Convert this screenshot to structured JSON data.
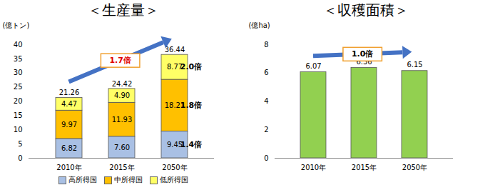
{
  "chart_data": [
    {
      "type": "bar",
      "title": "＜生産量＞",
      "y_label": "(億トン)",
      "categories": [
        "2010年",
        "2015年",
        "2050年"
      ],
      "series": [
        {
          "name": "高所得国",
          "color": "#a9c0e4",
          "values": [
            6.82,
            7.6,
            9.45
          ],
          "value_labels": [
            "6.82",
            "7.60",
            "9.45"
          ]
        },
        {
          "name": "中所得国",
          "color": "#ffc000",
          "values": [
            9.97,
            11.93,
            18.21
          ]
        },
        {
          "name": "低所得国",
          "color": "#ffff66",
          "values": [
            4.47,
            4.9,
            8.77
          ],
          "value_labels": [
            "4.47",
            "4.90",
            "8.77"
          ]
        }
      ],
      "totals": [
        21.26,
        24.42,
        36.44
      ],
      "stacked": true,
      "data_labels": true,
      "legend": "bottom",
      "ylim": [
        0,
        40
      ],
      "yticks": [
        0,
        5,
        10,
        15,
        20,
        25,
        30,
        35,
        40
      ],
      "annotations": [
        {
          "text": "1.7倍",
          "color": "#e00000"
        },
        {
          "text": "2.0倍",
          "series": "低所得国"
        },
        {
          "text": "1.8倍",
          "series": "中所得国"
        },
        {
          "text": "1.4倍",
          "series": "高所得国"
        }
      ]
    },
    {
      "type": "bar",
      "title": "＜収穫面積＞",
      "y_label": "(億ha)",
      "categories": [
        "2010年",
        "2015年",
        "2050年"
      ],
      "values": [
        6.07,
        6.36,
        6.15
      ],
      "color": "#92d050",
      "data_labels": true,
      "ylim": [
        0,
        8
      ],
      "yticks": [
        0,
        2,
        4,
        6,
        8
      ],
      "annotations": [
        {
          "text": "1.0倍",
          "color": "#000000"
        }
      ]
    }
  ]
}
